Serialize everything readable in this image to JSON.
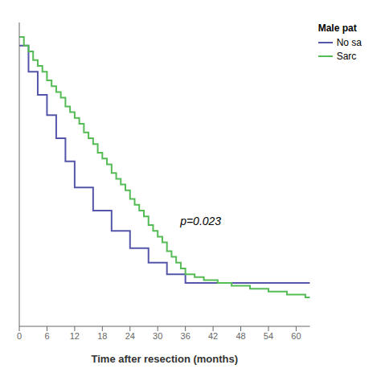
{
  "chart_data": {
    "type": "step",
    "xlabel": "Time after resection (months)",
    "xlim": [
      0,
      63
    ],
    "xticks": [
      0,
      6,
      12,
      18,
      24,
      30,
      36,
      42,
      48,
      54,
      60
    ],
    "ylim": [
      0,
      1.05
    ],
    "tick_labels": "x",
    "grid": false,
    "legend": "right",
    "legend_title": "Male pat",
    "annotations": [
      {
        "text": "p=0.023",
        "x": 34,
        "y": 0.365
      }
    ],
    "series": [
      {
        "name": "No sa",
        "color": "#5555aa",
        "x": [
          0,
          2,
          4,
          6,
          8,
          10,
          12,
          16,
          20,
          24,
          28,
          32,
          36,
          42,
          48,
          63
        ],
        "values": [
          0.97,
          0.88,
          0.8,
          0.73,
          0.65,
          0.57,
          0.48,
          0.4,
          0.33,
          0.27,
          0.22,
          0.18,
          0.15,
          0.15,
          0.15,
          0.15
        ]
      },
      {
        "name": "Sarc",
        "color": "#55bb55",
        "x": [
          0,
          1,
          2,
          3,
          4,
          5,
          6,
          7,
          8,
          9,
          10,
          11,
          12,
          13,
          14,
          15,
          16,
          17,
          18,
          19,
          20,
          21,
          22,
          23,
          24,
          25,
          26,
          27,
          28,
          29,
          30,
          31,
          32,
          33,
          34,
          35,
          36,
          37,
          38,
          39,
          40,
          41,
          42,
          43,
          44,
          46,
          48,
          50,
          52,
          54,
          56,
          58,
          60,
          62,
          63
        ],
        "values": [
          1.0,
          0.97,
          0.95,
          0.92,
          0.9,
          0.88,
          0.85,
          0.83,
          0.81,
          0.79,
          0.76,
          0.74,
          0.72,
          0.7,
          0.67,
          0.65,
          0.63,
          0.6,
          0.58,
          0.56,
          0.53,
          0.51,
          0.49,
          0.47,
          0.44,
          0.42,
          0.4,
          0.38,
          0.35,
          0.33,
          0.31,
          0.29,
          0.26,
          0.24,
          0.22,
          0.2,
          0.18,
          0.18,
          0.17,
          0.17,
          0.16,
          0.16,
          0.16,
          0.15,
          0.15,
          0.14,
          0.14,
          0.13,
          0.13,
          0.12,
          0.12,
          0.11,
          0.11,
          0.1,
          0.1
        ]
      }
    ]
  }
}
